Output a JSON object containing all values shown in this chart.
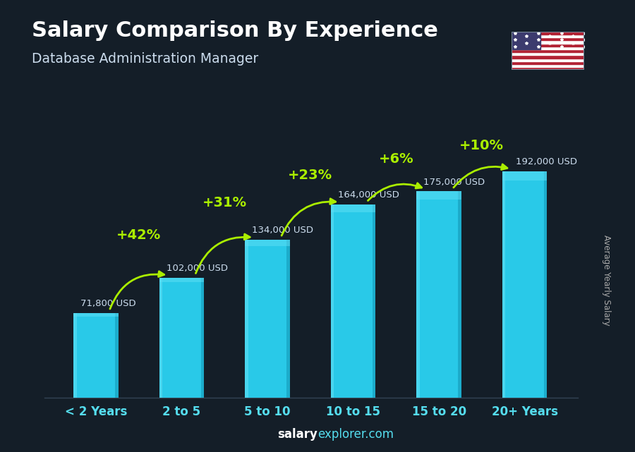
{
  "title": "Salary Comparison By Experience",
  "subtitle": "Database Administration Manager",
  "categories": [
    "< 2 Years",
    "2 to 5",
    "5 to 10",
    "10 to 15",
    "15 to 20",
    "20+ Years"
  ],
  "values": [
    71800,
    102000,
    134000,
    164000,
    175000,
    192000
  ],
  "salary_labels": [
    "71,800 USD",
    "102,000 USD",
    "134,000 USD",
    "164,000 USD",
    "175,000 USD",
    "192,000 USD"
  ],
  "pct_changes": [
    "+42%",
    "+31%",
    "+23%",
    "+6%",
    "+10%"
  ],
  "bar_color_face": "#29c9e8",
  "bar_color_light": "#60dff5",
  "bar_color_dark": "#1090b0",
  "background_color": "#141e28",
  "overlay_color": "#0a1520",
  "title_color": "#ffffff",
  "subtitle_color": "#ccddee",
  "salary_label_color": "#ccddee",
  "pct_color": "#aaee00",
  "xlabel_color": "#55ddee",
  "ylabel_text": "Average Yearly Salary",
  "ylabel_color": "#aaaaaa",
  "watermark_salary_color": "#ffffff",
  "watermark_explorer_color": "#55ddee",
  "ylim_max": 230000,
  "bar_width": 0.52,
  "arrow_rad": 0.4
}
